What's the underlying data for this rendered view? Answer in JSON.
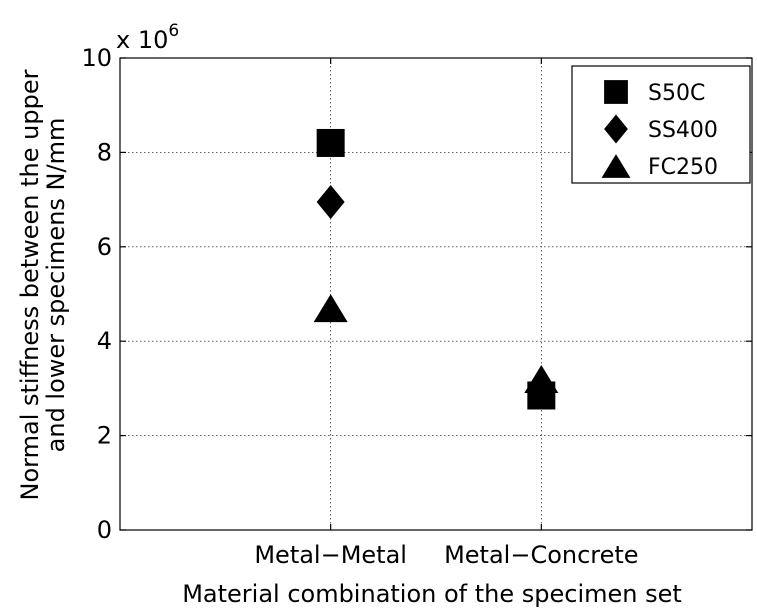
{
  "chart_data": {
    "type": "scatter",
    "title": "",
    "xlabel": "Material combination of the specimen set",
    "ylabel": [
      "Normal stiffness between the upper",
      "and lower specimens  N/mm"
    ],
    "y_multiplier": "x 10",
    "y_multiplier_exponent": "6",
    "categories": [
      "Metal−Metal",
      "Metal−Concrete"
    ],
    "xlim": [
      0,
      3
    ],
    "ylim": [
      0,
      10
    ],
    "yticks": [
      0,
      2,
      4,
      6,
      8,
      10
    ],
    "grid": true,
    "legend_position": "top-right",
    "series": [
      {
        "name": "S50C",
        "marker": "square",
        "values": [
          8.2,
          2.85
        ]
      },
      {
        "name": "SS400",
        "marker": "diamond",
        "values": [
          6.95,
          3.0
        ]
      },
      {
        "name": "FC250",
        "marker": "triangle",
        "values": [
          4.7,
          3.2
        ]
      }
    ],
    "colors": {
      "marker": "#000000",
      "grid": "#000000",
      "background": "#ffffff"
    }
  }
}
